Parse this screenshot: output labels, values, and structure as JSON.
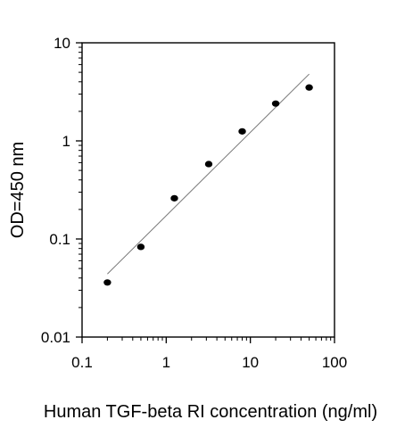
{
  "chart_data": {
    "type": "scatter",
    "title": "",
    "xlabel": "Human TGF-beta RI concentration (ng/ml)",
    "ylabel": "OD=450 nm",
    "x_scale": "log",
    "y_scale": "log",
    "xlim": [
      0.1,
      100
    ],
    "ylim": [
      0.01,
      10
    ],
    "x_tick_labels": [
      "0.1",
      "1",
      "10",
      "100"
    ],
    "y_tick_labels": [
      "0.01",
      "0.1",
      "1",
      "10"
    ],
    "grid": false,
    "legend": "none",
    "colors": {
      "points": "#000000",
      "fit_line": "#777777",
      "axes": "#000000"
    },
    "series": [
      {
        "points": [
          {
            "x": 0.2,
            "y": 0.036
          },
          {
            "x": 0.5,
            "y": 0.083
          },
          {
            "x": 1.25,
            "y": 0.26
          },
          {
            "x": 3.2,
            "y": 0.58
          },
          {
            "x": 8.0,
            "y": 1.25
          },
          {
            "x": 20.0,
            "y": 2.4
          },
          {
            "x": 50.0,
            "y": 3.5
          }
        ]
      }
    ],
    "fit_line": {
      "from": {
        "x": 0.2,
        "y": 0.044
      },
      "to": {
        "x": 50.0,
        "y": 4.8
      }
    }
  }
}
